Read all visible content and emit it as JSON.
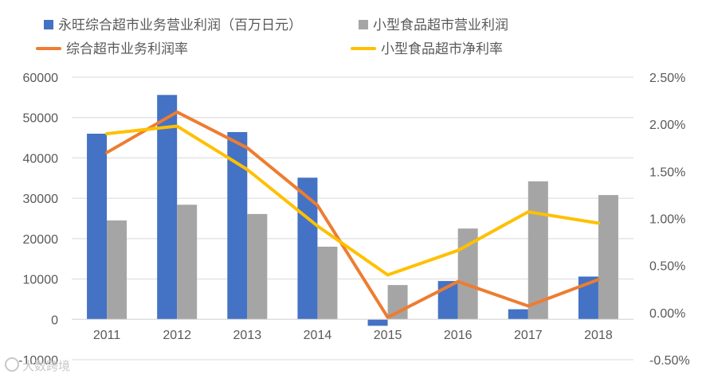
{
  "colors": {
    "bar1": "#4472c4",
    "bar2": "#a5a5a5",
    "line1": "#ed7d31",
    "line2": "#ffc000",
    "grid": "#d9d9d9",
    "axis": "#d9d9d9"
  },
  "watermark": "大数跨境",
  "chart_data": {
    "type": "bar",
    "title": "",
    "categories": [
      "2011",
      "2012",
      "2013",
      "2014",
      "2015",
      "2016",
      "2017",
      "2018"
    ],
    "series": [
      {
        "name": "永旺综合超市业务营业利润（百万日元）",
        "type": "bar",
        "axis": "left",
        "values": [
          46000,
          55600,
          46400,
          35100,
          -1600,
          9500,
          2500,
          10600
        ]
      },
      {
        "name": "小型食品超市营业利润",
        "type": "bar",
        "axis": "left",
        "values": [
          24500,
          28400,
          26100,
          18000,
          8500,
          22500,
          34200,
          30800
        ]
      },
      {
        "name": "综合超市业务利润率",
        "type": "line",
        "axis": "right",
        "values": [
          1.7,
          2.13,
          1.75,
          1.14,
          -0.05,
          0.33,
          0.07,
          0.35
        ]
      },
      {
        "name": "小型食品超市净利率",
        "type": "line",
        "axis": "right",
        "values": [
          1.9,
          1.98,
          1.52,
          0.92,
          0.4,
          0.66,
          1.07,
          0.95
        ]
      }
    ],
    "y_left": {
      "min": -10000,
      "max": 60000,
      "step": 10000,
      "ticks": [
        "-10000",
        "0",
        "10000",
        "20000",
        "30000",
        "40000",
        "50000",
        "60000"
      ]
    },
    "y_right": {
      "min": -0.5,
      "max": 2.5,
      "step": 0.5,
      "ticks": [
        "-0.50%",
        "0.00%",
        "0.50%",
        "1.00%",
        "1.50%",
        "2.00%",
        "2.50%"
      ]
    },
    "grid": true,
    "legend": "top"
  }
}
